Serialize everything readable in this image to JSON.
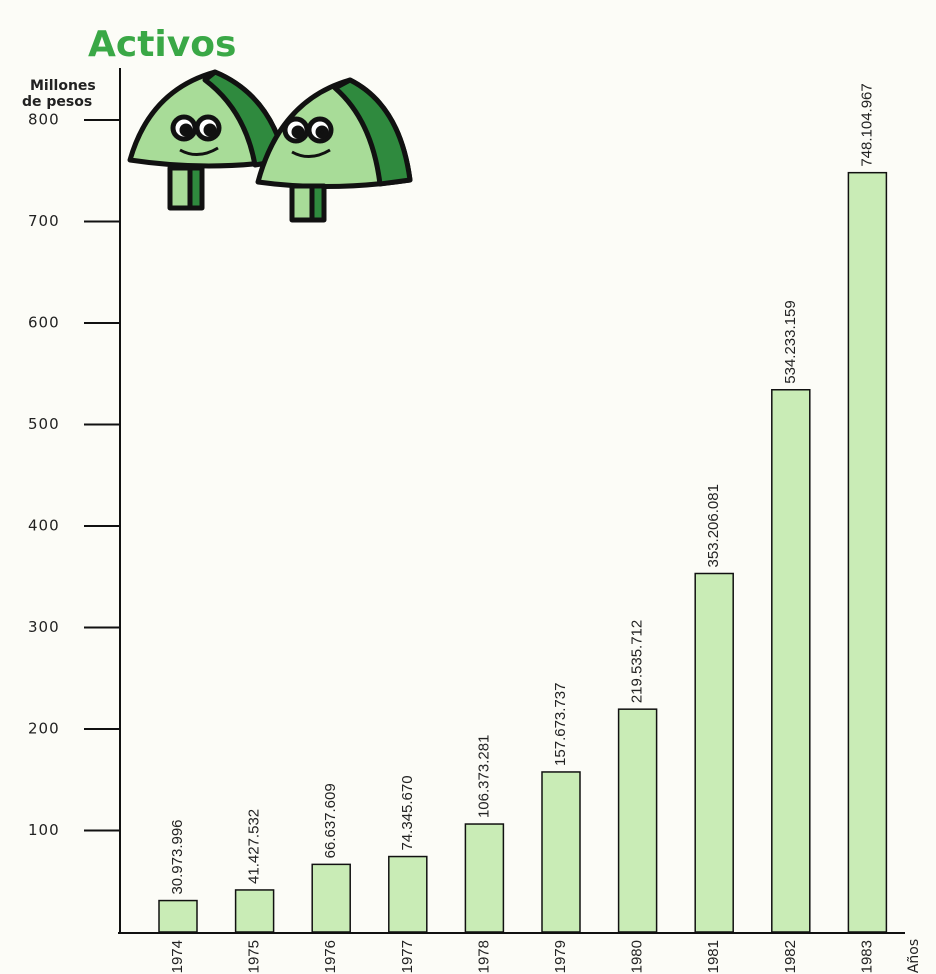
{
  "chart_data": {
    "type": "bar",
    "title": "Activos",
    "y_label_lines": [
      "Millones",
      "de pesos"
    ],
    "x_label": "Años",
    "categories": [
      "1974",
      "1975",
      "1976",
      "1977",
      "1978",
      "1979",
      "1980",
      "1981",
      "1982",
      "1983"
    ],
    "values": [
      30.973996,
      41.427532,
      66.637609,
      74.34567,
      106.373281,
      157.673737,
      219.535712,
      353.206081,
      534.233159,
      748.104967
    ],
    "value_labels": [
      "30.973.996",
      "41.427.532",
      "66.637.609",
      "74.345.670",
      "106.373.281",
      "157.673.737",
      "219.535.712",
      "353.206.081",
      "534.233.159",
      "748.104.967"
    ],
    "color": "#c9ecb6",
    "ylim": [
      0,
      800
    ],
    "yticks": [
      100,
      200,
      300,
      400,
      500,
      600,
      700,
      800
    ]
  }
}
